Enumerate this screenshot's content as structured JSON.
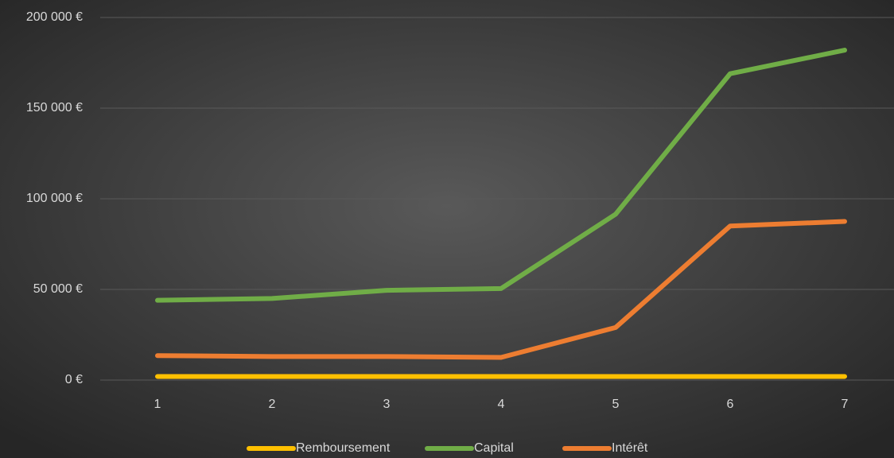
{
  "chart_data": {
    "type": "line",
    "categories": [
      "1",
      "2",
      "3",
      "4",
      "5",
      "6",
      "7"
    ],
    "series": [
      {
        "name": "Remboursement",
        "color": "#ffc000",
        "values": [
          2000,
          2000,
          2000,
          2000,
          2000,
          2000,
          2000
        ]
      },
      {
        "name": "Capital",
        "color": "#70ad47",
        "values": [
          44000,
          45000,
          49500,
          50500,
          91500,
          169000,
          182000
        ]
      },
      {
        "name": "Intérêt",
        "color": "#ed7d31",
        "values": [
          13500,
          13000,
          13000,
          12500,
          29000,
          85000,
          87500
        ]
      }
    ],
    "ylim": [
      0,
      200000
    ],
    "yticks": [
      {
        "value": 0,
        "label": "0 €"
      },
      {
        "value": 50000,
        "label": "50 000 €"
      },
      {
        "value": 100000,
        "label": "100 000 €"
      },
      {
        "value": 150000,
        "label": "150 000 €"
      },
      {
        "value": 200000,
        "label": "200 000 €"
      }
    ],
    "grid": true,
    "legend": "bottom"
  }
}
